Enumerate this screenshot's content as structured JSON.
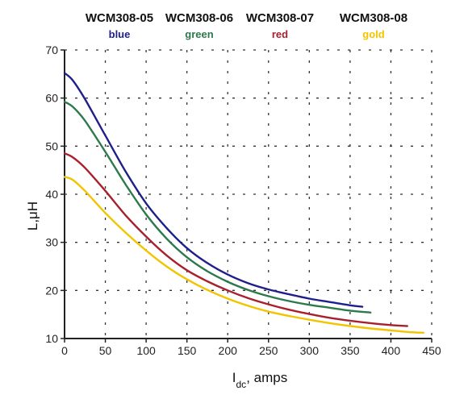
{
  "chart_data": {
    "type": "line",
    "xlabel": "I",
    "xlabel_sub": "dc",
    "xlabel_suffix": ", amps",
    "ylabel": "L,μH",
    "xlim": [
      0,
      450
    ],
    "ylim": [
      10,
      70
    ],
    "x_ticks": [
      0,
      50,
      100,
      150,
      200,
      250,
      300,
      350,
      400,
      450
    ],
    "x_tick_labels": [
      "0",
      "50",
      "100",
      "150",
      "200",
      "250",
      "300",
      "350",
      "400",
      "450"
    ],
    "y_ticks": [
      10,
      20,
      30,
      40,
      50,
      60,
      70
    ],
    "y_tick_labels": [
      "10",
      "20",
      "30",
      "40",
      "50",
      "60",
      "70"
    ],
    "grid": "dashed",
    "legend_placement": "top",
    "series": [
      {
        "name": "WCM308-05",
        "color_label": "blue",
        "color": "#1f1f8c",
        "x": [
          0,
          10,
          25,
          50,
          75,
          100,
          125,
          150,
          175,
          200,
          225,
          250,
          275,
          300,
          325,
          350,
          365
        ],
        "y": [
          65.2,
          63.7,
          59.8,
          52.2,
          44.7,
          38.1,
          33.0,
          28.8,
          25.7,
          23.3,
          21.5,
          20.2,
          19.2,
          18.3,
          17.6,
          16.9,
          16.6
        ]
      },
      {
        "name": "WCM308-06",
        "color_label": "green",
        "color": "#2c7a4b",
        "x": [
          0,
          10,
          25,
          50,
          75,
          100,
          125,
          150,
          175,
          200,
          225,
          250,
          275,
          300,
          325,
          350,
          375
        ],
        "y": [
          59.2,
          58.2,
          55.3,
          48.8,
          42.0,
          35.8,
          30.8,
          26.9,
          24.0,
          21.8,
          20.1,
          18.8,
          17.8,
          17.0,
          16.4,
          15.8,
          15.4
        ]
      },
      {
        "name": "WCM308-07",
        "color_label": "red",
        "color": "#a8202e",
        "x": [
          0,
          10,
          25,
          50,
          75,
          100,
          125,
          150,
          175,
          200,
          225,
          250,
          275,
          300,
          325,
          350,
          375,
          400,
          420
        ],
        "y": [
          48.5,
          47.7,
          45.5,
          40.7,
          35.6,
          31.2,
          27.3,
          24.2,
          21.9,
          20.0,
          18.4,
          17.1,
          16.0,
          15.1,
          14.3,
          13.7,
          13.2,
          12.8,
          12.6
        ]
      },
      {
        "name": "WCM308-08",
        "color_label": "gold",
        "color": "#f2c400",
        "x": [
          0,
          10,
          25,
          50,
          75,
          100,
          125,
          150,
          175,
          200,
          225,
          250,
          275,
          300,
          325,
          350,
          375,
          400,
          425,
          440
        ],
        "y": [
          43.6,
          43.0,
          40.7,
          36.1,
          32.0,
          28.3,
          25.0,
          22.3,
          20.1,
          18.3,
          16.8,
          15.6,
          14.7,
          13.9,
          13.2,
          12.6,
          12.1,
          11.7,
          11.3,
          11.2
        ]
      }
    ]
  }
}
